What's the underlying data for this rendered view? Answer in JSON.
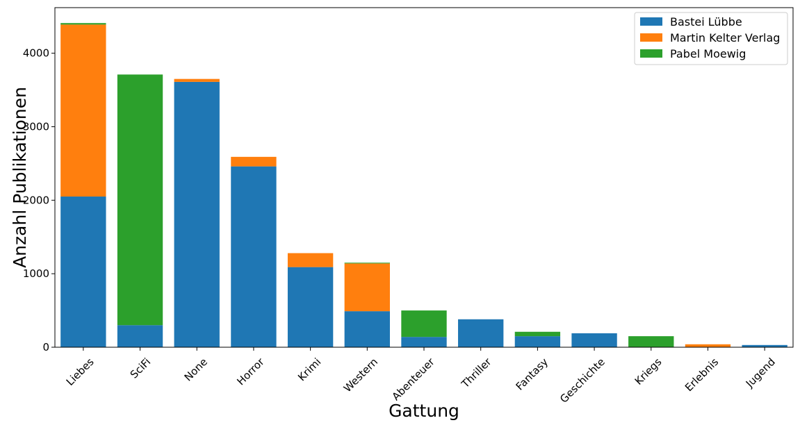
{
  "chart_data": {
    "type": "bar",
    "stacked": true,
    "xlabel": "Gattung",
    "ylabel": "Anzahl Publikationen",
    "ylim": [
      0,
      4620
    ],
    "yticks": [
      0,
      1000,
      2000,
      3000,
      4000
    ],
    "grid": false,
    "legend_position": "top-right",
    "categories": [
      "Liebes",
      "SciFi",
      "None",
      "Horror",
      "Krimi",
      "Western",
      "Abenteuer",
      "Thriller",
      "Fantasy",
      "Geschichte",
      "Kriegs",
      "Erlebnis",
      "Jugend"
    ],
    "series": [
      {
        "name": "Bastei Lübbe",
        "color": "#1f77b4",
        "values": [
          2050,
          300,
          3610,
          2460,
          1090,
          490,
          140,
          380,
          150,
          190,
          0,
          0,
          30
        ]
      },
      {
        "name": "Martin Kelter Verlag",
        "color": "#ff7f0e",
        "values": [
          2340,
          0,
          40,
          130,
          190,
          650,
          0,
          0,
          0,
          0,
          0,
          40,
          0
        ]
      },
      {
        "name": "Pabel Moewig",
        "color": "#2ca02c",
        "values": [
          20,
          3410,
          0,
          0,
          0,
          10,
          360,
          0,
          60,
          0,
          150,
          0,
          0
        ]
      }
    ]
  }
}
